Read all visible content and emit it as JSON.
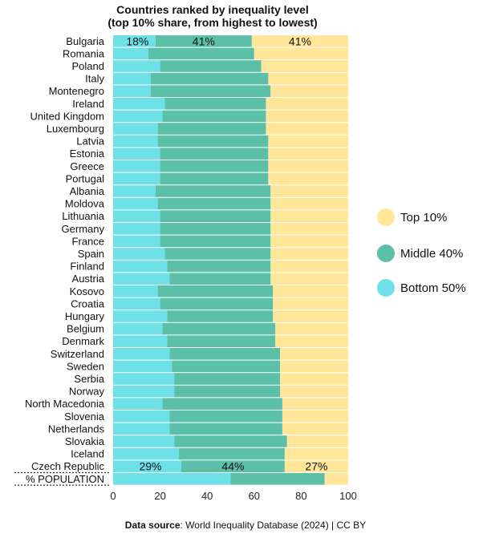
{
  "chart_data": {
    "type": "bar",
    "orientation": "horizontal",
    "stacked": true,
    "title": "Countries ranked by inequality level",
    "subtitle": "(top 10% share, from highest to lowest)",
    "categories": [
      "Bulgaria",
      "Romania",
      "Poland",
      "Italy",
      "Montenegro",
      "Ireland",
      "United Kingdom",
      "Luxembourg",
      "Latvia",
      "Estonia",
      "Greece",
      "Portugal",
      "Albania",
      "Moldova",
      "Lithuania",
      "Germany",
      "France",
      "Spain",
      "Finland",
      "Austria",
      "Kosovo",
      "Croatia",
      "Hungary",
      "Belgium",
      "Denmark",
      "Switzerland",
      "Sweden",
      "Serbia",
      "Norway",
      "North Macedonia",
      "Slovenia",
      "Netherlands",
      "Slovakia",
      "Iceland",
      "Czech Republic",
      "% POPULATION"
    ],
    "series": [
      {
        "name": "Bottom 50%",
        "color": "#6ee0e8",
        "values": [
          18,
          15,
          20,
          16,
          16,
          22,
          21,
          19,
          19,
          20,
          20,
          20,
          18,
          19,
          20,
          20,
          20,
          22,
          23,
          24,
          19,
          20,
          23,
          21,
          23,
          24,
          25,
          26,
          26,
          21,
          24,
          24,
          26,
          28,
          29,
          50
        ]
      },
      {
        "name": "Middle 40%",
        "color": "#5cc0a8",
        "values": [
          41,
          45,
          43,
          50,
          51,
          43,
          44,
          46,
          47,
          46,
          46,
          46,
          49,
          48,
          47,
          47,
          47,
          45,
          44,
          43,
          49,
          48,
          45,
          48,
          46,
          47,
          46,
          45,
          45,
          51,
          48,
          48,
          48,
          45,
          44,
          40
        ]
      },
      {
        "name": "Top 10%",
        "color": "#ffe699",
        "values": [
          41,
          40,
          37,
          34,
          33,
          35,
          35,
          35,
          34,
          34,
          34,
          34,
          33,
          33,
          33,
          33,
          33,
          33,
          33,
          33,
          32,
          32,
          32,
          31,
          31,
          29,
          29,
          29,
          29,
          28,
          28,
          28,
          26,
          27,
          27,
          10
        ]
      }
    ],
    "data_labels": [
      {
        "row": "Bulgaria",
        "values": [
          "18%",
          "41%",
          "41%"
        ]
      },
      {
        "row": "Czech Republic",
        "values": [
          "29%",
          "44%",
          "27%"
        ]
      }
    ],
    "x_ticks": [
      "0",
      "20",
      "40",
      "60",
      "80",
      "100"
    ],
    "xlim": [
      0,
      100
    ],
    "legend_position": "right",
    "legend": [
      "Top 10%",
      "Middle 40%",
      "Bottom 50%"
    ]
  },
  "source_label": "Data source",
  "source_text": ": World Inequality Database (2024) | CC BY"
}
